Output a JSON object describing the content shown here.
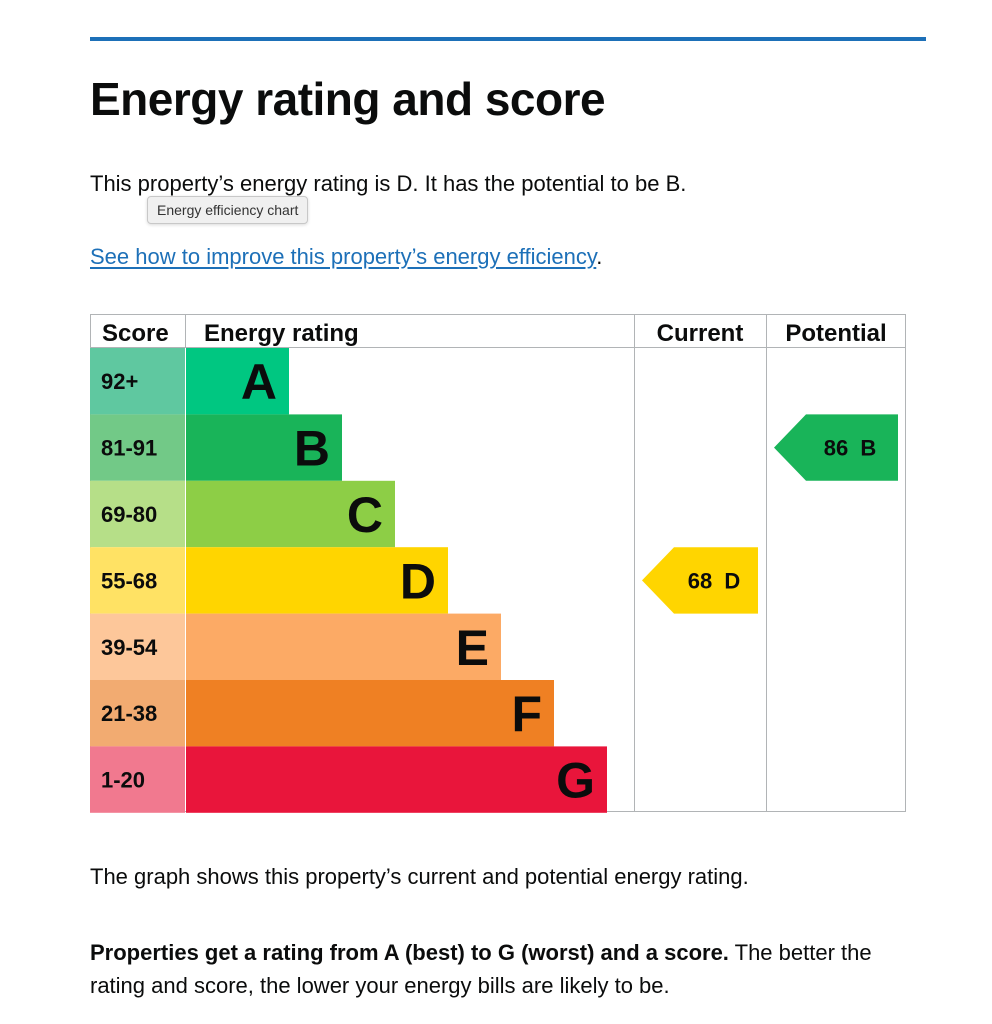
{
  "page": {
    "title": "Energy rating and score",
    "summary": "This property’s energy rating is D. It has the potential to be B.",
    "tooltip": "Energy efficiency chart",
    "improve_link": "See how to improve this property’s energy efficiency",
    "improve_punct": ".",
    "graph_note": "The graph shows this property’s current and potential energy rating.",
    "rating_bold": "Properties get a rating from A (best) to G (worst) and a score.",
    "rating_rest": " The better the rating and score, the lower your energy bills are likely to be.",
    "link_color": "#1d70b8"
  },
  "chart_data": {
    "type": "bar",
    "headers": {
      "score": "Score",
      "rating": "Energy rating",
      "current": "Current",
      "potential": "Potential"
    },
    "bands": [
      {
        "letter": "A",
        "range": "92+",
        "color": "#00c781",
        "score_color": "#5fc8a0"
      },
      {
        "letter": "B",
        "range": "81-91",
        "color": "#19b459",
        "score_color": "#72c987"
      },
      {
        "letter": "C",
        "range": "69-80",
        "color": "#8dce46",
        "score_color": "#b6df88"
      },
      {
        "letter": "D",
        "range": "55-68",
        "color": "#ffd500",
        "score_color": "#ffe264"
      },
      {
        "letter": "E",
        "range": "39-54",
        "color": "#fcaa65",
        "score_color": "#fdc79a"
      },
      {
        "letter": "F",
        "range": "21-38",
        "color": "#ef8023",
        "score_color": "#f2ab71"
      },
      {
        "letter": "G",
        "range": "1-20",
        "color": "#e9153b",
        "score_color": "#f1798f"
      }
    ],
    "current": {
      "score": 68,
      "band": "D",
      "label": "68  D",
      "color": "#ffd500"
    },
    "potential": {
      "score": 86,
      "band": "B",
      "label": "86  B",
      "color": "#19b459"
    }
  }
}
